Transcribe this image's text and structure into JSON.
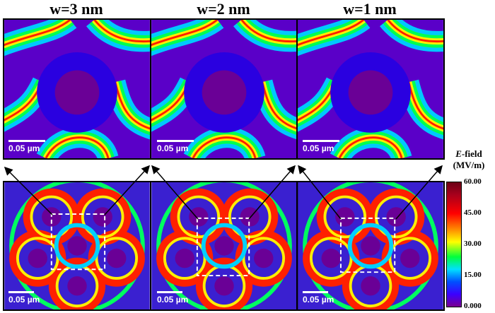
{
  "titles": [
    "w=3 nm",
    "w=2 nm",
    "w=1 nm"
  ],
  "scale_label": "0.05 µm",
  "colorbar": {
    "title_italic": "E",
    "title_rest": "-field",
    "unit": "(MV/m)",
    "ticks": [
      "60.00",
      "45.00",
      "30.00",
      "15.00",
      "0.000"
    ]
  }
}
